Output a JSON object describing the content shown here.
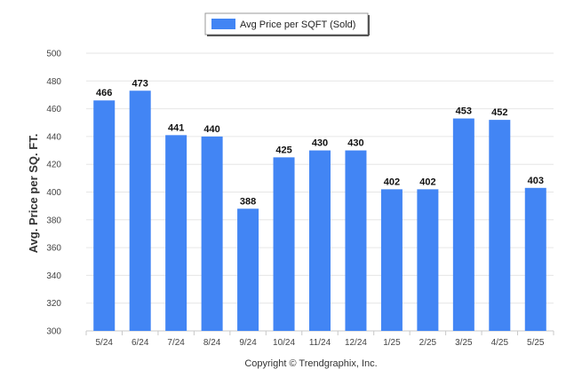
{
  "chart_data": {
    "type": "bar",
    "categories": [
      "5/24",
      "6/24",
      "7/24",
      "8/24",
      "9/24",
      "10/24",
      "11/24",
      "12/24",
      "1/25",
      "2/25",
      "3/25",
      "4/25",
      "5/25"
    ],
    "series": [
      {
        "name": "Avg Price per SQFT (Sold)",
        "values": [
          466,
          473,
          441,
          440,
          388,
          425,
          430,
          430,
          402,
          402,
          453,
          452,
          403
        ]
      }
    ],
    "ylabel": "Avg. Price per SQ. FT.",
    "xlabel": "",
    "ylim": [
      300,
      500
    ],
    "yticks": [
      300,
      320,
      340,
      360,
      380,
      400,
      420,
      440,
      460,
      480,
      500
    ],
    "grid": true,
    "legend_position": "top-center",
    "bar_color": "#4285f4",
    "show_data_labels": true
  },
  "credit": "Copyright © Trendgraphix, Inc."
}
